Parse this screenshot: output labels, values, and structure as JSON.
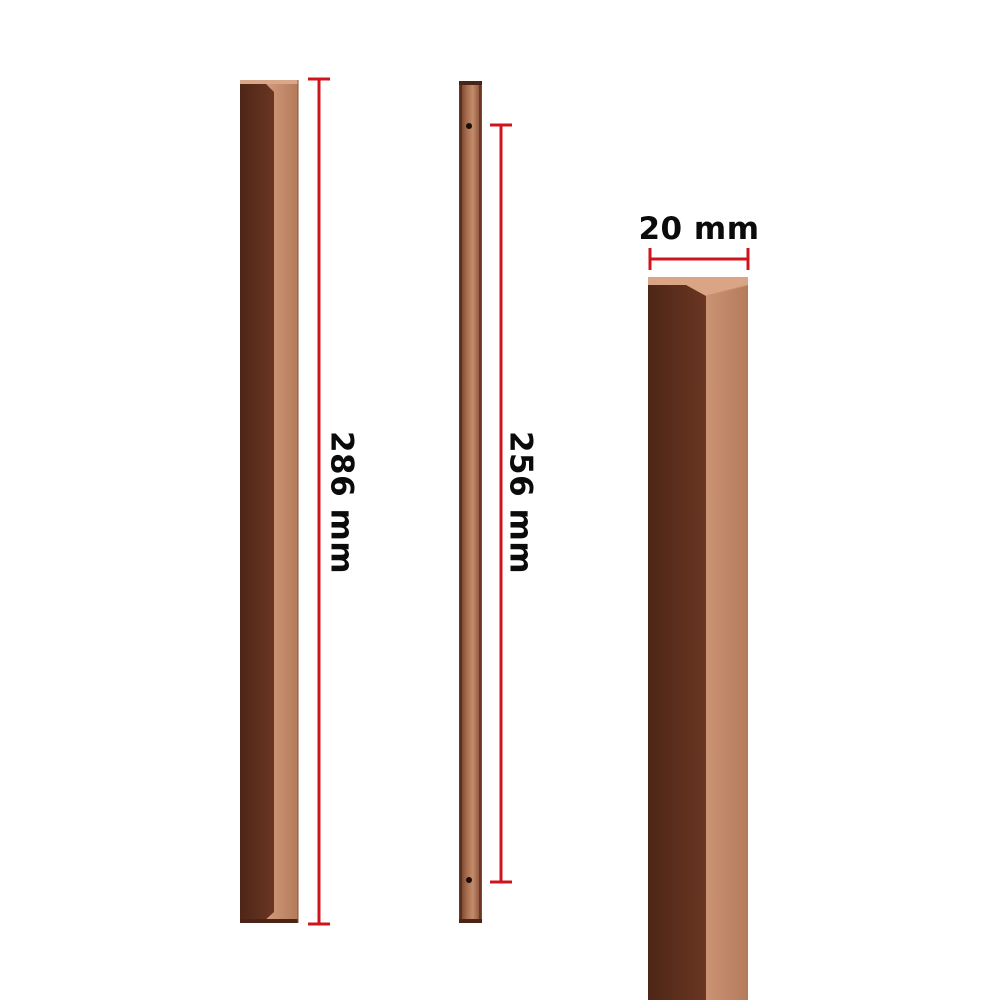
{
  "dimensions": {
    "full_length_label": "286 mm",
    "hole_spacing_label": "256 mm",
    "width_label": "20 mm"
  },
  "colors": {
    "handle_dark": "#5a2e1c",
    "handle_light": "#c68f6f",
    "dimension_line": "#d0141c",
    "text": "#0b0b0b"
  },
  "icons": {
    "handle_front": "handle-front-view",
    "handle_side": "handle-side-view",
    "handle_closeup": "handle-closeup-view"
  }
}
